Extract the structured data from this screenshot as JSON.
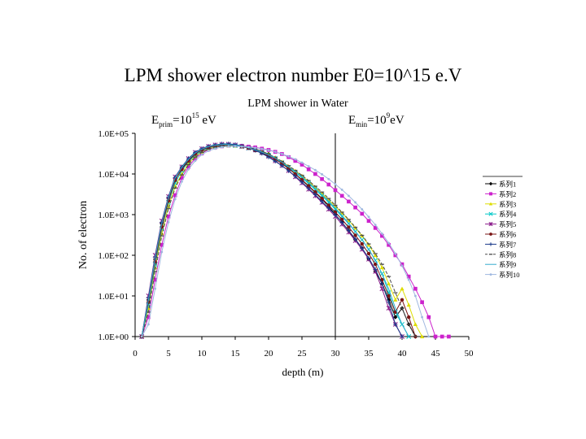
{
  "slide": {
    "title": "LPM shower electron number E0=10^15 e.V"
  },
  "chart_data": {
    "type": "line",
    "title": "LPM shower in Water",
    "annotations": {
      "eprim": {
        "base": "E",
        "sub": "prim",
        "mid": "=10",
        "sup": "15",
        "tail": " eV"
      },
      "emin": {
        "base": "E",
        "sub": "min",
        "mid": "=10",
        "sup": "9",
        "tail": "eV"
      }
    },
    "xlabel": "depth (m)",
    "ylabel": "No. of electron",
    "xlim": [
      0,
      50
    ],
    "x_ticks": [
      0,
      5,
      10,
      15,
      20,
      25,
      30,
      35,
      40,
      45,
      50
    ],
    "x_tick_labels": [
      "0",
      "5",
      "10",
      "15",
      "20",
      "25",
      "30",
      "35",
      "40",
      "45",
      "50"
    ],
    "y_scale": "log",
    "ylim": [
      1,
      100000
    ],
    "y_ticks": [
      1,
      10,
      100,
      1000,
      10000,
      100000
    ],
    "y_tick_labels": [
      "1.0E+00",
      "1.0E+01",
      "1.0E+02",
      "1.0E+03",
      "1.0E+04",
      "1.0E+05"
    ],
    "vline_x": 30,
    "legend_position": "right",
    "x": [
      1,
      2,
      3,
      4,
      5,
      6,
      7,
      8,
      9,
      10,
      11,
      12,
      13,
      14,
      15,
      16,
      17,
      18,
      19,
      20,
      21,
      22,
      23,
      24,
      25,
      26,
      27,
      28,
      29,
      30,
      31,
      32,
      33,
      34,
      35,
      36,
      37,
      38,
      39,
      40,
      41,
      42,
      43,
      44,
      45,
      46,
      47
    ],
    "series": [
      {
        "name": "系列1",
        "color": "#000000",
        "marker": "diamond",
        "style": "solid",
        "values": [
          1,
          8,
          80,
          600,
          2500,
          8000,
          14000,
          22000,
          32000,
          40000,
          46000,
          50000,
          52000,
          53000,
          51000,
          48000,
          45000,
          41000,
          36000,
          31000,
          25000,
          19000,
          14000,
          10000,
          7000,
          5000,
          3500,
          2400,
          1600,
          1000,
          650,
          400,
          240,
          150,
          80,
          40,
          20,
          8,
          3,
          5,
          2,
          1,
          null,
          null,
          null,
          null,
          null
        ]
      },
      {
        "name": "系列2",
        "color": "#cc22cc",
        "marker": "square",
        "style": "solid",
        "values": [
          1,
          3,
          25,
          180,
          900,
          3000,
          8000,
          15000,
          24000,
          32000,
          40000,
          45000,
          48000,
          50000,
          50000,
          49000,
          47000,
          45000,
          42000,
          39000,
          35000,
          31000,
          26000,
          21000,
          17000,
          13000,
          10000,
          7500,
          5500,
          4000,
          2900,
          2100,
          1500,
          1050,
          700,
          470,
          300,
          180,
          100,
          60,
          30,
          15,
          7,
          3,
          1,
          1,
          1
        ]
      },
      {
        "name": "系列3",
        "color": "#dddd00",
        "marker": "triangle",
        "style": "solid",
        "values": [
          1,
          5,
          50,
          350,
          1600,
          5000,
          10000,
          18000,
          27000,
          35000,
          42000,
          46000,
          49000,
          50000,
          49000,
          47000,
          44000,
          40000,
          35000,
          30000,
          25000,
          20000,
          15500,
          12000,
          9000,
          6500,
          4700,
          3300,
          2300,
          1600,
          1100,
          720,
          470,
          300,
          180,
          100,
          50,
          20,
          8,
          15,
          6,
          2,
          1,
          null,
          null,
          null,
          null
        ]
      },
      {
        "name": "系列4",
        "color": "#00c8c8",
        "marker": "x",
        "style": "solid",
        "values": [
          1,
          6,
          60,
          450,
          2000,
          6000,
          12000,
          20000,
          29000,
          37000,
          44000,
          48000,
          51000,
          52000,
          50000,
          47000,
          43000,
          39000,
          34000,
          29000,
          24000,
          19000,
          14500,
          11000,
          8000,
          5800,
          4100,
          2900,
          2000,
          1350,
          900,
          600,
          380,
          240,
          140,
          75,
          35,
          12,
          4,
          2,
          1,
          null,
          null,
          null,
          null,
          null,
          null
        ]
      },
      {
        "name": "系列5",
        "color": "#8a1a8a",
        "marker": "star",
        "style": "solid",
        "values": [
          1,
          10,
          100,
          700,
          2800,
          8500,
          15000,
          24000,
          34000,
          42000,
          48000,
          52000,
          54000,
          54000,
          52000,
          48000,
          44000,
          39000,
          33000,
          27000,
          21000,
          16000,
          12000,
          8500,
          6000,
          4200,
          2900,
          2000,
          1350,
          900,
          580,
          370,
          230,
          140,
          80,
          40,
          15,
          5,
          2,
          1,
          null,
          null,
          null,
          null,
          null,
          null,
          null
        ]
      },
      {
        "name": "系列6",
        "color": "#7a1414",
        "marker": "circle",
        "style": "solid",
        "values": [
          1,
          7,
          70,
          500,
          2200,
          7000,
          13000,
          21000,
          31000,
          39000,
          45000,
          49000,
          52000,
          52000,
          50000,
          47000,
          43000,
          38000,
          33000,
          28000,
          23000,
          18000,
          13500,
          10000,
          7200,
          5100,
          3600,
          2500,
          1700,
          1150,
          760,
          490,
          310,
          190,
          110,
          60,
          25,
          10,
          4,
          8,
          3,
          1,
          null,
          null,
          null,
          null,
          null
        ]
      },
      {
        "name": "系列7",
        "color": "#1a3a8a",
        "marker": "plus",
        "style": "solid",
        "values": [
          1,
          9,
          90,
          650,
          2700,
          8200,
          15000,
          24000,
          34000,
          42000,
          48000,
          52000,
          55000,
          55000,
          53000,
          49000,
          44000,
          38000,
          32000,
          26000,
          20500,
          16000,
          12000,
          8800,
          6300,
          4400,
          3100,
          2100,
          1450,
          980,
          640,
          410,
          250,
          150,
          85,
          45,
          20,
          7,
          2,
          1,
          null,
          null,
          null,
          null,
          null,
          null,
          null
        ]
      },
      {
        "name": "系列8",
        "color": "#4a4a4a",
        "marker": "dash",
        "style": "dashed",
        "values": [
          1,
          4,
          40,
          300,
          1400,
          4500,
          9500,
          17000,
          26000,
          34000,
          41000,
          46000,
          49000,
          50000,
          49000,
          47000,
          44000,
          40000,
          35500,
          30500,
          25500,
          20500,
          16000,
          12300,
          9300,
          6900,
          5000,
          3600,
          2500,
          1700,
          1150,
          760,
          490,
          310,
          190,
          110,
          60,
          30,
          12,
          5,
          2,
          1,
          null,
          null,
          null,
          null,
          null
        ]
      },
      {
        "name": "系列9",
        "color": "#33aacc",
        "marker": "none",
        "style": "solid",
        "values": [
          1,
          8,
          85,
          620,
          2600,
          8000,
          14500,
          23000,
          33000,
          41000,
          47000,
          51000,
          53000,
          53000,
          51000,
          48000,
          44000,
          39500,
          34500,
          29500,
          24500,
          19500,
          15000,
          11500,
          8500,
          6200,
          4400,
          3100,
          2150,
          1450,
          960,
          620,
          390,
          240,
          140,
          75,
          35,
          15,
          5,
          2,
          1,
          null,
          null,
          null,
          null,
          null,
          null
        ]
      },
      {
        "name": "系列10",
        "color": "#9fb8e0",
        "marker": "dot",
        "style": "solid",
        "values": [
          1,
          2,
          15,
          120,
          650,
          2400,
          6500,
          13000,
          21000,
          30000,
          37000,
          42000,
          46000,
          48000,
          48000,
          47000,
          46000,
          44000,
          41500,
          38500,
          35000,
          31000,
          27000,
          23000,
          19000,
          15500,
          12500,
          9800,
          7500,
          5600,
          4100,
          2900,
          2000,
          1350,
          880,
          560,
          340,
          200,
          110,
          55,
          25,
          10,
          3,
          1,
          null,
          null,
          null
        ]
      }
    ]
  }
}
